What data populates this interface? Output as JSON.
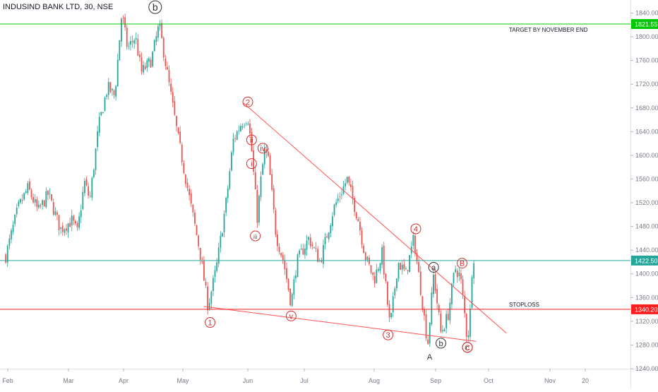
{
  "chart_data": {
    "type": "candlestick",
    "title": "INDUSIND BANK LTD, 30, NSE",
    "x_months": [
      "Feb",
      "Mar",
      "Apr",
      "May",
      "Jun",
      "Jul",
      "Aug",
      "Sep",
      "Oct",
      "Nov",
      "20"
    ],
    "y_ticks": [
      "1840.00",
      "1800.00",
      "1760.00",
      "1720.00",
      "1680.00",
      "1640.00",
      "1600.00",
      "1560.00",
      "1520.00",
      "1480.00",
      "1440.00",
      "1400.00",
      "1360.00",
      "1320.00",
      "1280.00",
      "1240.00"
    ],
    "ylim": [
      1240,
      1850
    ],
    "grid": false,
    "price_path": [
      {
        "x": "Jan 30",
        "y": 1430
      },
      {
        "x": "Feb 5",
        "y": 1510
      },
      {
        "x": "Feb 10",
        "y": 1545
      },
      {
        "x": "Feb 15",
        "y": 1505
      },
      {
        "x": "Feb 20",
        "y": 1535
      },
      {
        "x": "Feb 26",
        "y": 1475
      },
      {
        "x": "Mar 3",
        "y": 1490
      },
      {
        "x": "Mar 6",
        "y": 1470
      },
      {
        "x": "Mar 10",
        "y": 1555
      },
      {
        "x": "Mar 13",
        "y": 1525
      },
      {
        "x": "Mar 18",
        "y": 1650
      },
      {
        "x": "Mar 23",
        "y": 1715
      },
      {
        "x": "Mar 27",
        "y": 1700
      },
      {
        "x": "Mar 31",
        "y": 1840
      },
      {
        "x": "Apr 3",
        "y": 1780
      },
      {
        "x": "Apr 7",
        "y": 1800
      },
      {
        "x": "Apr 10",
        "y": 1740
      },
      {
        "x": "Apr 15",
        "y": 1760
      },
      {
        "x": "Apr 19",
        "y": 1820
      },
      {
        "x": "Apr 23",
        "y": 1740
      },
      {
        "x": "Apr 28",
        "y": 1640
      },
      {
        "x": "May 4",
        "y": 1530
      },
      {
        "x": "May 9",
        "y": 1440
      },
      {
        "x": "May 13",
        "y": 1345
      },
      {
        "x": "May 17",
        "y": 1410
      },
      {
        "x": "May 22",
        "y": 1530
      },
      {
        "x": "May 25",
        "y": 1625
      },
      {
        "x": "May 29",
        "y": 1655
      },
      {
        "x": "Jun 1",
        "y": 1665
      },
      {
        "x": "Jun 3",
        "y": 1610
      },
      {
        "x": "Jun 6",
        "y": 1495
      },
      {
        "x": "Jun 8",
        "y": 1560
      },
      {
        "x": "Jun 10",
        "y": 1610
      },
      {
        "x": "Jun 12",
        "y": 1590
      },
      {
        "x": "Jun 16",
        "y": 1465
      },
      {
        "x": "Jun 20",
        "y": 1420
      },
      {
        "x": "Jun 24",
        "y": 1350
      },
      {
        "x": "Jun 27",
        "y": 1420
      },
      {
        "x": "Jul 3",
        "y": 1460
      },
      {
        "x": "Jul 8",
        "y": 1420
      },
      {
        "x": "Jul 14",
        "y": 1510
      },
      {
        "x": "Jul 20",
        "y": 1560
      },
      {
        "x": "Jul 25",
        "y": 1490
      },
      {
        "x": "Jul 28",
        "y": 1430
      },
      {
        "x": "Aug 1",
        "y": 1390
      },
      {
        "x": "Aug 5",
        "y": 1435
      },
      {
        "x": "Aug 9",
        "y": 1310
      },
      {
        "x": "Aug 13",
        "y": 1420
      },
      {
        "x": "Aug 17",
        "y": 1400
      },
      {
        "x": "Aug 21",
        "y": 1460
      },
      {
        "x": "Aug 25",
        "y": 1360
      },
      {
        "x": "Aug 28",
        "y": 1280
      },
      {
        "x": "Aug 31",
        "y": 1400
      },
      {
        "x": "Sep 4",
        "y": 1300
      },
      {
        "x": "Sep 8",
        "y": 1330
      },
      {
        "x": "Sep 12",
        "y": 1410
      },
      {
        "x": "Sep 15",
        "y": 1395
      },
      {
        "x": "Sep 17",
        "y": 1345
      },
      {
        "x": "Sep 19",
        "y": 1285
      },
      {
        "x": "Sep 21",
        "y": 1350
      },
      {
        "x": "Sep 22",
        "y": 1440
      },
      {
        "x": "Sep 23",
        "y": 1422.5
      }
    ],
    "horizontal_lines": [
      {
        "price": 1821.55,
        "color": "#00c800",
        "label": "1821.55",
        "note": "TARGET BY NOVEMBER END"
      },
      {
        "price": 1422.5,
        "color": "#26a69a",
        "label": "1422.50",
        "note": ""
      },
      {
        "price": 1340.2,
        "color": "#ff1e1e",
        "label": "1340.20",
        "note": "STOPLOSS"
      }
    ],
    "trendlines": [
      {
        "from": {
          "x": "May 30",
          "y": 1688
        },
        "to": {
          "x": "Oct 10",
          "y": 1300
        }
      },
      {
        "from": {
          "x": "May 11",
          "y": 1345
        },
        "to": {
          "x": "Sep 24",
          "y": 1286
        }
      }
    ],
    "wave_labels": [
      {
        "text": "b",
        "x": "Apr 17",
        "y": 1850,
        "circled": true,
        "color": "#333333"
      },
      {
        "text": "1",
        "x": "May 14",
        "y": 1318,
        "circled": true,
        "color": "#d32f2f"
      },
      {
        "text": "2",
        "x": "Jun 1",
        "y": 1690,
        "circled": true,
        "color": "#d32f2f"
      },
      {
        "text": "ii",
        "x": "Jun 3",
        "y": 1626,
        "circled": true,
        "color": "#d32f2f"
      },
      {
        "text": "iv",
        "x": "Jun 9",
        "y": 1612,
        "circled": true,
        "color": "#d32f2f"
      },
      {
        "text": "i",
        "x": "Jun 3",
        "y": 1586,
        "circled": true,
        "color": "#d32f2f"
      },
      {
        "text": "iii",
        "x": "Jun 5",
        "y": 1464,
        "circled": true,
        "color": "#d32f2f"
      },
      {
        "text": "v",
        "x": "Jun 24",
        "y": 1329,
        "circled": true,
        "color": "#d32f2f"
      },
      {
        "text": "3",
        "x": "Aug 8",
        "y": 1297,
        "circled": true,
        "color": "#d32f2f"
      },
      {
        "text": "4",
        "x": "Aug 22",
        "y": 1476,
        "circled": true,
        "color": "#d32f2f"
      },
      {
        "text": "a",
        "x": "Aug 31",
        "y": 1411,
        "circled": true,
        "color": "#333333"
      },
      {
        "text": "b",
        "x": "Sep 4",
        "y": 1283,
        "circled": true,
        "color": "#333333"
      },
      {
        "text": "B",
        "x": "Sep 16",
        "y": 1418,
        "circled": true,
        "color": "#d32f2f"
      },
      {
        "text": "c",
        "x": "Sep 19",
        "y": 1276,
        "circled": true,
        "color": "#333333"
      },
      {
        "text": "C",
        "x": "Sep 19",
        "y": 1276,
        "circled": true,
        "color": "#d32f2f"
      },
      {
        "text": "A",
        "x": "Aug 29",
        "y": 1260,
        "circled": false,
        "color": "#333333"
      }
    ],
    "colors": {
      "up": "#26a69a",
      "down": "#ef5350",
      "trendline": "#ff5252",
      "text": "#131722",
      "axis": "#787b86"
    }
  }
}
